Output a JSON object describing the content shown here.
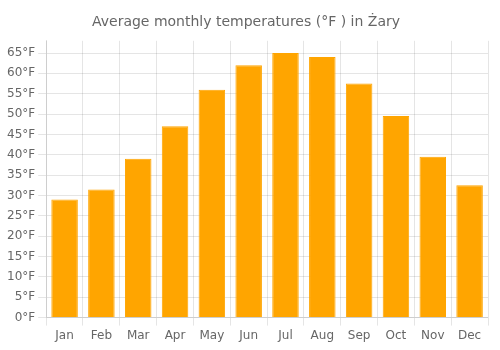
{
  "chart_data": {
    "type": "bar",
    "title": "Average monthly temperatures (°F ) in Żary",
    "categories": [
      "Jan",
      "Feb",
      "Mar",
      "Apr",
      "May",
      "Jun",
      "Jul",
      "Aug",
      "Sep",
      "Oct",
      "Nov",
      "Dec"
    ],
    "values": [
      29,
      31.5,
      39,
      47,
      56,
      62,
      65,
      64,
      57.5,
      49.5,
      39.5,
      32.5
    ],
    "color": "#FFA500",
    "ylim": [
      0,
      68
    ],
    "yticks": [
      {
        "value": 0,
        "label": "0°F"
      },
      {
        "value": 5,
        "label": "5°F"
      },
      {
        "value": 10,
        "label": "10°F"
      },
      {
        "value": 15,
        "label": "15°F"
      },
      {
        "value": 20,
        "label": "20°F"
      },
      {
        "value": 25,
        "label": "25°F"
      },
      {
        "value": 30,
        "label": "30°F"
      },
      {
        "value": 35,
        "label": "35°F"
      },
      {
        "value": 40,
        "label": "40°F"
      },
      {
        "value": 45,
        "label": "45°F"
      },
      {
        "value": 50,
        "label": "50°F"
      },
      {
        "value": 55,
        "label": "55°F"
      },
      {
        "value": 60,
        "label": "60°F"
      },
      {
        "value": 65,
        "label": "65°F"
      }
    ],
    "grid": true
  }
}
